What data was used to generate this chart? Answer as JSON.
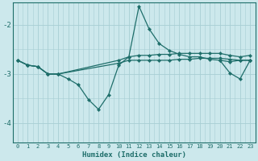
{
  "xlabel": "Humidex (Indice chaleur)",
  "bg_color": "#cce8ec",
  "grid_color": "#a8ced4",
  "line_color": "#1e6e6a",
  "xlim": [
    -0.5,
    23.5
  ],
  "ylim": [
    -4.4,
    -1.55
  ],
  "yticks": [
    -4,
    -3,
    -2
  ],
  "xticks": [
    0,
    1,
    2,
    3,
    4,
    5,
    6,
    7,
    8,
    9,
    10,
    11,
    12,
    13,
    14,
    15,
    16,
    17,
    18,
    19,
    20,
    21,
    22,
    23
  ],
  "series1_x": [
    0,
    1,
    2,
    3,
    4,
    5,
    6,
    7,
    8,
    9,
    10,
    11,
    12,
    13,
    14,
    15,
    16,
    17,
    18,
    19,
    20,
    21,
    22,
    23
  ],
  "series1_y": [
    -2.72,
    -2.82,
    -2.85,
    -3.0,
    -3.0,
    -3.1,
    -3.22,
    -3.52,
    -3.72,
    -3.42,
    -2.82,
    -2.65,
    -1.62,
    -2.08,
    -2.38,
    -2.52,
    -2.6,
    -2.65,
    -2.65,
    -2.7,
    -2.72,
    -2.75,
    -2.72,
    -2.72
  ],
  "series2_x": [
    0,
    1,
    2,
    3,
    4,
    10,
    11,
    12,
    13,
    14,
    15,
    16,
    17,
    18,
    19,
    20,
    21,
    22,
    23
  ],
  "series2_y": [
    -2.72,
    -2.82,
    -2.85,
    -3.0,
    -3.0,
    -2.78,
    -2.72,
    -2.72,
    -2.72,
    -2.72,
    -2.72,
    -2.7,
    -2.7,
    -2.68,
    -2.68,
    -2.68,
    -2.7,
    -2.72,
    -2.72
  ],
  "series3_x": [
    0,
    1,
    2,
    3,
    4,
    10,
    11,
    12,
    13,
    14,
    15,
    16,
    17,
    18,
    19,
    20,
    21,
    22,
    23
  ],
  "series3_y": [
    -2.72,
    -2.82,
    -2.85,
    -3.0,
    -3.0,
    -2.72,
    -2.65,
    -2.62,
    -2.62,
    -2.6,
    -2.6,
    -2.58,
    -2.58,
    -2.58,
    -2.58,
    -2.58,
    -2.62,
    -2.65,
    -2.62
  ],
  "series4_x": [
    20,
    21,
    22,
    23
  ],
  "series4_y": [
    -2.72,
    -2.98,
    -3.1,
    -2.72
  ]
}
